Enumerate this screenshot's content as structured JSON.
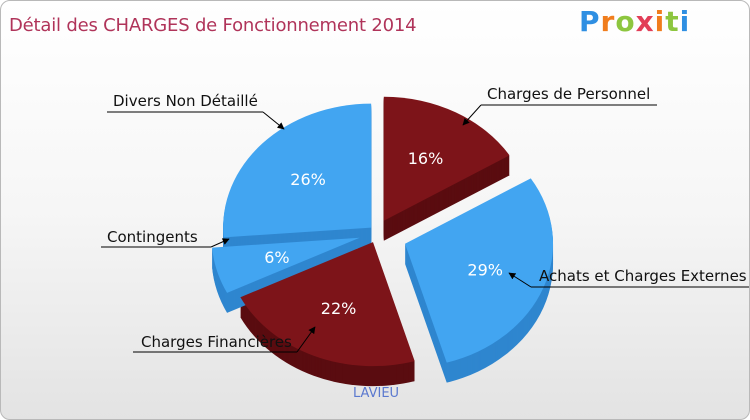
{
  "title": "Détail des CHARGES de Fonctionnement 2014",
  "logo": {
    "text": "Proxiti",
    "letters": [
      "P",
      "r",
      "o",
      "x",
      "i",
      "t",
      "i"
    ]
  },
  "commune": "LAVIEU",
  "colors": {
    "blue": "#42a5f1",
    "red": "#7d1419",
    "title": "#b0345a"
  },
  "chart_data": {
    "type": "pie",
    "title": "Détail des CHARGES de Fonctionnement 2014",
    "slices": [
      {
        "label": "Charges de Personnel",
        "percent": 16,
        "percent_label": "16%",
        "color": "red"
      },
      {
        "label": "Achats et Charges Externes",
        "percent": 29,
        "percent_label": "29%",
        "color": "blue"
      },
      {
        "label": "Charges Financières",
        "percent": 22,
        "percent_label": "22%",
        "color": "red"
      },
      {
        "label": "Contingents",
        "percent": 6,
        "percent_label": "6%",
        "color": "blue"
      },
      {
        "label": "Divers Non Détaillé",
        "percent": 26,
        "percent_label": "26%",
        "color": "blue"
      }
    ]
  }
}
